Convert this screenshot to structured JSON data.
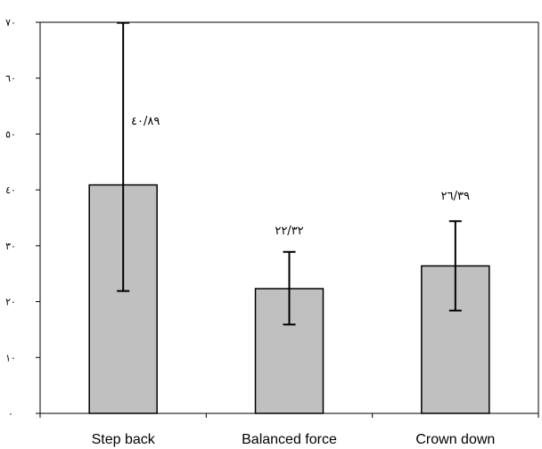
{
  "chart_data": {
    "type": "bar",
    "categories": [
      "Step back",
      "Balanced force",
      "Crown down"
    ],
    "values": [
      40.89,
      22.32,
      26.39
    ],
    "error_low": [
      21.9,
      15.9,
      18.4
    ],
    "error_high": [
      69.9,
      28.9,
      34.4
    ],
    "data_labels": [
      "٤٠/٨٩",
      "٢٢/٣٢",
      "٢٦/٣٩"
    ],
    "ylim": [
      0,
      70
    ],
    "yticks": [
      0,
      10,
      20,
      30,
      40,
      50,
      60,
      70
    ],
    "ytick_labels": [
      "٠",
      "١٠",
      "٢٠",
      "٣٠",
      "٤٠",
      "٥٠",
      "٦٠",
      "٧٠"
    ],
    "title": "",
    "xlabel": "",
    "ylabel": "",
    "grid": false,
    "legend": "none",
    "bar_color": "#c0c0c0",
    "bar_edge_color": "#000000"
  }
}
